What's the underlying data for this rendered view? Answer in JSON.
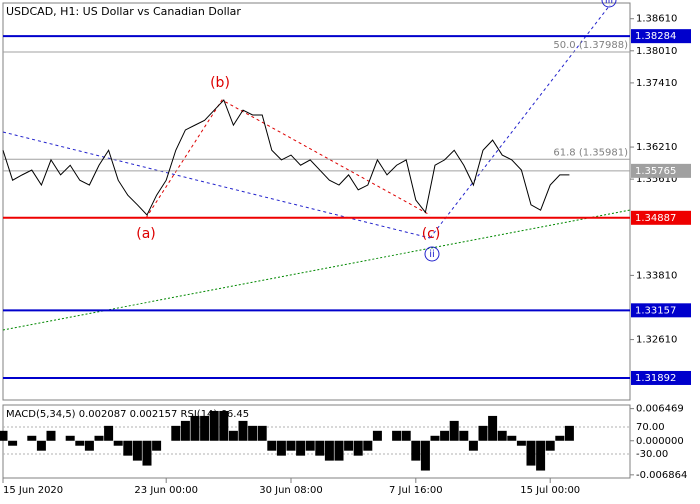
{
  "chart_data": {
    "type": "line",
    "title": "USDCAD, H1:  US Dollar vs Canadian Dollar",
    "categories": [
      "15 Jun 2020",
      null,
      null,
      null,
      null,
      null,
      null,
      null,
      null,
      null,
      null,
      null,
      null,
      null,
      null,
      null,
      null,
      "23 Jun 00:00",
      null,
      null,
      null,
      null,
      null,
      null,
      null,
      null,
      null,
      null,
      null,
      null,
      "30 Jun 08:00",
      null,
      null,
      null,
      null,
      null,
      null,
      null,
      null,
      null,
      null,
      null,
      null,
      "7 Jul 16:00",
      null,
      null,
      null,
      null,
      null,
      null,
      null,
      null,
      null,
      null,
      null,
      null,
      null,
      "15 Jul 00:00",
      null,
      null
    ],
    "values": [
      1.3615,
      1.3559,
      1.3569,
      1.3578,
      1.355,
      1.3597,
      1.3569,
      1.3587,
      1.3559,
      1.355,
      1.3587,
      1.3615,
      1.3559,
      1.3531,
      1.3513,
      1.3494,
      1.3531,
      1.3559,
      1.3615,
      1.3653,
      1.3662,
      1.3671,
      1.369,
      1.3709,
      1.3662,
      1.369,
      1.3681,
      1.3681,
      1.3615,
      1.3597,
      1.3606,
      1.3587,
      1.3597,
      1.3578,
      1.3559,
      1.355,
      1.3569,
      1.3541,
      1.355,
      1.3597,
      1.3569,
      1.3587,
      1.3597,
      1.3522,
      1.3499,
      1.3587,
      1.3597,
      1.3615,
      1.3587,
      1.355,
      1.3615,
      1.3634,
      1.3606,
      1.3597,
      1.3578,
      1.3513,
      1.3503,
      1.355,
      1.3569,
      1.3569
    ],
    "color": "#000000",
    "ylim": [
      1.3148,
      1.3896
    ],
    "yticks": [
      {
        "value": 1.3861,
        "label": "1.38610"
      },
      {
        "value": 1.3801,
        "label": "1.38010"
      },
      {
        "value": 1.3741,
        "label": "1.37410"
      },
      {
        "value": 1.3621,
        "label": "1.36210"
      },
      {
        "value": 1.3561,
        "label": "1.35610"
      },
      {
        "value": 1.3381,
        "label": "1.33810"
      },
      {
        "value": 1.3261,
        "label": "1.32610"
      }
    ],
    "levels": [
      {
        "value": 1.38284,
        "color": "#0000cc"
      },
      {
        "value": 1.34887,
        "color": "#ee0000"
      },
      {
        "value": 1.33157,
        "color": "#0000cc"
      },
      {
        "value": 1.31892,
        "color": "#0000cc"
      }
    ],
    "current": {
      "value": 1.35765,
      "color": "#a0a0a0"
    },
    "fibs": [
      {
        "value": 1.37988,
        "label": "50.0 (1.37988)"
      },
      {
        "value": 1.35981,
        "label": "61.8 (1.35981)"
      }
    ],
    "wave_labels": [
      "(a)",
      "(b)",
      "(c)",
      "ii",
      "iii"
    ],
    "indicator": {
      "type": "bar",
      "title": "MACD(5,34,5) 0.002087 0.002157 RSI(14) 66.45",
      "values": [
        0.002,
        -0.001,
        0,
        0.001,
        -0.002,
        0.002,
        0,
        0.001,
        -0.001,
        -0.002,
        0.001,
        0.003,
        -0.001,
        -0.003,
        -0.004,
        -0.005,
        -0.002,
        0,
        0.003,
        0.004,
        0.005,
        0.005,
        0.006,
        0.006,
        0.002,
        0.004,
        0.003,
        0.003,
        -0.002,
        -0.003,
        -0.002,
        -0.003,
        -0.002,
        -0.003,
        -0.004,
        -0.004,
        -0.002,
        -0.003,
        -0.002,
        0.002,
        0,
        0.002,
        0.002,
        -0.004,
        -0.006,
        0.001,
        0.002,
        0.004,
        0.002,
        -0.002,
        0.003,
        0.005,
        0.002,
        0.001,
        -0.001,
        -0.005,
        -0.006,
        -0.002,
        0.001,
        0.003
      ],
      "color": "#000000",
      "ylim": [
        -0.0075,
        0.0072
      ],
      "yticks": [
        0.006469,
        {
          "value": 0,
          "label": "0.000000"
        },
        -0.006864
      ],
      "y2lim": [
        -118.9,
        151.5
      ],
      "y2ticks": [
        {
          "value": 70,
          "label": "70.00"
        },
        {
          "value": -30,
          "label": "-30.00"
        }
      ]
    }
  }
}
